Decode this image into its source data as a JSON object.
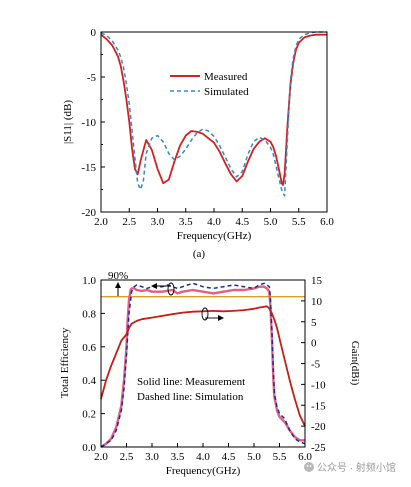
{
  "chart_data": [
    {
      "type": "line",
      "caption": "(a)",
      "xlabel": "Frequency(GHz)",
      "ylabel": "|S11| (dB)",
      "xlim": [
        2.0,
        6.0
      ],
      "ylim": [
        -20,
        0
      ],
      "xticks": [
        "2.0",
        "2.5",
        "3.0",
        "3.5",
        "4.0",
        "4.5",
        "5.0",
        "5.5",
        "6.0"
      ],
      "yticks": [
        "0",
        "-5",
        "-10",
        "-15",
        "-20"
      ],
      "legend_position": "upper-center",
      "series": [
        {
          "name": "Measured",
          "color": "#d32020",
          "style": "solid",
          "x": [
            2.0,
            2.1,
            2.2,
            2.3,
            2.35,
            2.4,
            2.45,
            2.5,
            2.55,
            2.6,
            2.65,
            2.7,
            2.8,
            2.9,
            3.0,
            3.1,
            3.2,
            3.3,
            3.4,
            3.5,
            3.6,
            3.7,
            3.8,
            3.9,
            4.0,
            4.1,
            4.2,
            4.3,
            4.4,
            4.5,
            4.6,
            4.7,
            4.8,
            4.9,
            5.0,
            5.05,
            5.1,
            5.15,
            5.2,
            5.22,
            5.25,
            5.3,
            5.35,
            5.4,
            5.45,
            5.5,
            5.6,
            5.7,
            5.8,
            5.9,
            6.0
          ],
          "y": [
            -0.3,
            -0.8,
            -1.5,
            -2.7,
            -3.8,
            -5.5,
            -7.5,
            -10.0,
            -13.0,
            -15.2,
            -15.8,
            -14.3,
            -12.0,
            -13.1,
            -15.2,
            -16.8,
            -16.4,
            -14.4,
            -12.6,
            -11.5,
            -11.0,
            -11.1,
            -11.3,
            -11.8,
            -12.3,
            -13.3,
            -14.6,
            -15.8,
            -16.6,
            -16.0,
            -14.4,
            -13.0,
            -12.2,
            -11.8,
            -12.2,
            -12.8,
            -13.8,
            -15.3,
            -16.8,
            -17.0,
            -15.8,
            -10.5,
            -6.0,
            -3.5,
            -2.0,
            -1.2,
            -0.6,
            -0.4,
            -0.3,
            -0.3,
            -0.3
          ]
        },
        {
          "name": "Simulated",
          "color": "#3a86c8",
          "style": "dashed",
          "x": [
            2.0,
            2.1,
            2.2,
            2.3,
            2.35,
            2.4,
            2.45,
            2.5,
            2.55,
            2.6,
            2.65,
            2.7,
            2.75,
            2.8,
            2.9,
            3.0,
            3.1,
            3.2,
            3.3,
            3.4,
            3.5,
            3.6,
            3.7,
            3.8,
            3.9,
            4.0,
            4.1,
            4.2,
            4.3,
            4.4,
            4.5,
            4.6,
            4.7,
            4.8,
            4.9,
            5.0,
            5.05,
            5.1,
            5.15,
            5.2,
            5.25,
            5.3,
            5.35,
            5.4,
            5.45,
            5.5,
            5.6,
            5.7,
            5.8,
            5.9,
            6.0
          ],
          "y": [
            -0.1,
            -0.4,
            -1.0,
            -2.0,
            -2.8,
            -4.0,
            -5.8,
            -8.0,
            -11.0,
            -14.0,
            -16.8,
            -17.5,
            -16.5,
            -13.5,
            -11.8,
            -11.5,
            -12.2,
            -13.5,
            -14.2,
            -13.8,
            -13.0,
            -12.0,
            -11.2,
            -10.8,
            -11.0,
            -11.6,
            -12.6,
            -13.9,
            -15.2,
            -16.1,
            -15.5,
            -13.6,
            -12.2,
            -11.7,
            -12.0,
            -12.8,
            -13.6,
            -14.9,
            -16.3,
            -17.6,
            -18.2,
            -12.0,
            -5.5,
            -3.0,
            -1.6,
            -0.8,
            -0.3,
            -0.1,
            0.0,
            0.0,
            0.0
          ]
        }
      ]
    },
    {
      "type": "line",
      "xlabel": "Frequency(GHz)",
      "ylabel": "Total Efficiency",
      "ylabel_right": "Gain(dBi)",
      "xlim": [
        2.0,
        6.0
      ],
      "ylim": [
        0.0,
        1.0
      ],
      "ylim_right": [
        -25,
        15
      ],
      "xticks": [
        "2.0",
        "2.5",
        "3.0",
        "3.5",
        "4.0",
        "4.5",
        "5.0",
        "5.5",
        "6.0"
      ],
      "yticks": [
        "0.0",
        "0.2",
        "0.4",
        "0.6",
        "0.8",
        "1.0"
      ],
      "yticks_right": [
        "15",
        "10",
        "5",
        "0",
        "-5",
        "-10",
        "-15",
        "-20",
        "-25"
      ],
      "annotations": [
        "90%",
        "Solid line: Measurement",
        "Dashed line: Simulation"
      ],
      "reference_line": {
        "axis": "left",
        "value": 0.9,
        "color": "#d9a020"
      },
      "series": [
        {
          "name": "Efficiency measured",
          "axis": "left",
          "color": "#e06080",
          "style": "solid",
          "x": [
            2.0,
            2.1,
            2.2,
            2.3,
            2.4,
            2.45,
            2.5,
            2.52,
            2.55,
            2.58,
            2.6,
            2.65,
            2.7,
            2.8,
            2.9,
            3.0,
            3.2,
            3.4,
            3.5,
            3.6,
            3.8,
            4.0,
            4.2,
            4.4,
            4.6,
            4.8,
            5.0,
            5.1,
            5.2,
            5.25,
            5.3,
            5.32,
            5.35,
            5.38,
            5.4,
            5.45,
            5.5,
            5.6,
            5.7,
            5.8,
            5.9,
            6.0
          ],
          "y": [
            0.0,
            0.02,
            0.05,
            0.12,
            0.25,
            0.4,
            0.6,
            0.75,
            0.88,
            0.94,
            0.95,
            0.95,
            0.94,
            0.935,
            0.94,
            0.93,
            0.93,
            0.94,
            0.92,
            0.93,
            0.94,
            0.93,
            0.92,
            0.93,
            0.94,
            0.94,
            0.95,
            0.96,
            0.96,
            0.95,
            0.93,
            0.85,
            0.65,
            0.4,
            0.3,
            0.22,
            0.18,
            0.15,
            0.1,
            0.06,
            0.04,
            0.04
          ]
        },
        {
          "name": "Efficiency simulated",
          "axis": "left",
          "color": "#1a2aa0",
          "style": "dashed",
          "x": [
            2.0,
            2.1,
            2.2,
            2.3,
            2.4,
            2.45,
            2.5,
            2.55,
            2.6,
            2.65,
            2.7,
            2.8,
            2.9,
            3.0,
            3.2,
            3.3,
            3.5,
            3.7,
            3.8,
            4.0,
            4.2,
            4.4,
            4.6,
            4.8,
            5.0,
            5.1,
            5.2,
            5.25,
            5.3,
            5.32,
            5.35,
            5.38,
            5.4,
            5.45,
            5.5,
            5.6,
            5.7,
            5.8,
            5.9,
            6.0
          ],
          "y": [
            0.0,
            0.02,
            0.04,
            0.1,
            0.22,
            0.35,
            0.55,
            0.8,
            0.93,
            0.96,
            0.97,
            0.96,
            0.95,
            0.96,
            0.96,
            0.97,
            0.95,
            0.97,
            0.98,
            0.96,
            0.95,
            0.96,
            0.97,
            0.96,
            0.95,
            0.97,
            0.98,
            0.97,
            0.96,
            0.9,
            0.7,
            0.45,
            0.32,
            0.24,
            0.2,
            0.17,
            0.1,
            0.05,
            0.03,
            0.02
          ]
        },
        {
          "name": "Gain measured",
          "axis": "right",
          "color": "#c02018",
          "style": "solid",
          "x": [
            2.0,
            2.1,
            2.2,
            2.3,
            2.4,
            2.5,
            2.55,
            2.6,
            2.7,
            2.8,
            3.0,
            3.2,
            3.4,
            3.6,
            3.8,
            4.0,
            4.2,
            4.4,
            4.6,
            4.8,
            5.0,
            5.1,
            5.2,
            5.25,
            5.3,
            5.35,
            5.4,
            5.45,
            5.5,
            5.6,
            5.7,
            5.8,
            5.9,
            6.0
          ],
          "y": [
            -13.5,
            -9.0,
            -5.5,
            -2.5,
            0.5,
            2.0,
            3.5,
            4.5,
            5.2,
            5.6,
            6.0,
            6.4,
            6.8,
            7.2,
            7.4,
            7.5,
            7.6,
            7.5,
            7.6,
            7.8,
            8.1,
            8.4,
            8.6,
            8.7,
            8.2,
            7.0,
            5.5,
            3.5,
            1.0,
            -4.0,
            -9.0,
            -13.5,
            -17.5,
            -20.0
          ]
        }
      ]
    }
  ],
  "watermark": "公众号 · 射频小馆"
}
